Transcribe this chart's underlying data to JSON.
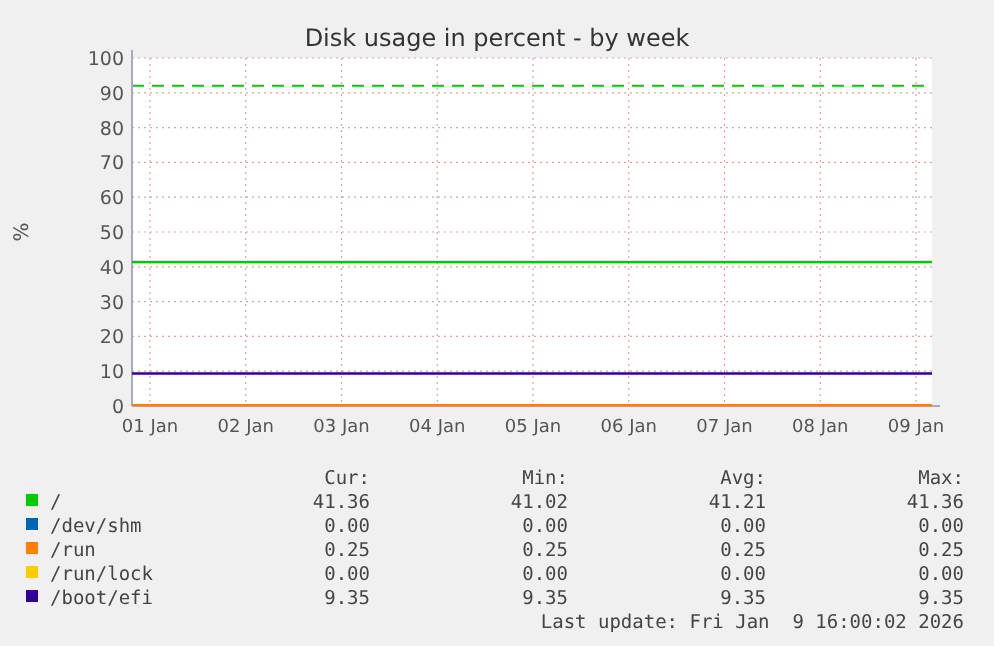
{
  "chart_data": {
    "type": "line",
    "title": "Disk usage in percent - by week",
    "ylabel": "%",
    "x": [
      "2026-01-01T07:30",
      "2026-01-09T16:00"
    ],
    "xlim": [
      "2026-01-01T07:30",
      "2026-01-09T16:00"
    ],
    "xticks": [
      {
        "value": "2026-01-01T12:00",
        "label": "01 Jan"
      },
      {
        "value": "2026-01-02T12:00",
        "label": "02 Jan"
      },
      {
        "value": "2026-01-03T12:00",
        "label": "03 Jan"
      },
      {
        "value": "2026-01-04T12:00",
        "label": "04 Jan"
      },
      {
        "value": "2026-01-05T12:00",
        "label": "05 Jan"
      },
      {
        "value": "2026-01-06T12:00",
        "label": "06 Jan"
      },
      {
        "value": "2026-01-07T12:00",
        "label": "07 Jan"
      },
      {
        "value": "2026-01-08T12:00",
        "label": "08 Jan"
      },
      {
        "value": "2026-01-09T12:00",
        "label": "09 Jan"
      }
    ],
    "ylim": [
      0,
      100
    ],
    "yticks": [
      0,
      10,
      20,
      30,
      40,
      50,
      60,
      70,
      80,
      90,
      100
    ],
    "grid": true,
    "legend": "bottom",
    "line_style": "solid",
    "marker": "none",
    "series": [
      {
        "name": "/",
        "color": "#00cc00",
        "values": [
          41.36,
          41.36
        ]
      },
      {
        "name": "/dev/shm",
        "color": "#0066b3",
        "values": [
          null,
          null
        ]
      },
      {
        "name": "/run",
        "color": "#ff8000",
        "values": [
          0.25,
          0.25
        ]
      },
      {
        "name": "/run/lock",
        "color": "#ffcc00",
        "values": [
          null,
          null
        ]
      },
      {
        "name": "/boot/efi",
        "color": "#330099",
        "values": [
          9.35,
          9.35
        ]
      }
    ],
    "ref_lines": [
      {
        "axis": "y",
        "value": 92,
        "color": "#00cc00",
        "line_style": "dashed"
      }
    ],
    "annotations": [
      "Cur:",
      "Min:",
      "Avg:",
      "Max:",
      "41.36",
      "41.02",
      "41.21",
      "41.36",
      "0.00",
      "0.00",
      "0.00",
      "0.00",
      "0.25",
      "0.25",
      "0.25",
      "0.25",
      "0.00",
      "0.00",
      "0.00",
      "0.00",
      "9.35",
      "9.35",
      "9.35",
      "9.35",
      "Last update: Fri Jan  9 16:00:02 2026"
    ]
  }
}
